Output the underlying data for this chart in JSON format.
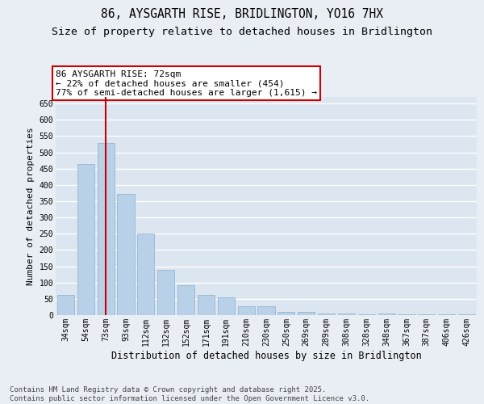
{
  "title": "86, AYSGARTH RISE, BRIDLINGTON, YO16 7HX",
  "subtitle": "Size of property relative to detached houses in Bridlington",
  "xlabel": "Distribution of detached houses by size in Bridlington",
  "ylabel": "Number of detached properties",
  "categories": [
    "34sqm",
    "54sqm",
    "73sqm",
    "93sqm",
    "112sqm",
    "132sqm",
    "152sqm",
    "171sqm",
    "191sqm",
    "210sqm",
    "230sqm",
    "250sqm",
    "269sqm",
    "289sqm",
    "308sqm",
    "328sqm",
    "348sqm",
    "367sqm",
    "387sqm",
    "406sqm",
    "426sqm"
  ],
  "values": [
    62,
    463,
    528,
    373,
    251,
    140,
    93,
    63,
    54,
    27,
    27,
    9,
    11,
    6,
    6,
    3,
    5,
    2,
    2,
    3,
    3
  ],
  "bar_color": "#b8d0e8",
  "bar_edge_color": "#8ab0cc",
  "vline_x_index": 2,
  "vline_color": "#cc0000",
  "annotation_text": "86 AYSGARTH RISE: 72sqm\n← 22% of detached houses are smaller (454)\n77% of semi-detached houses are larger (1,615) →",
  "annotation_box_facecolor": "#ffffff",
  "annotation_box_edgecolor": "#cc0000",
  "ylim": [
    0,
    670
  ],
  "yticks": [
    0,
    50,
    100,
    150,
    200,
    250,
    300,
    350,
    400,
    450,
    500,
    550,
    600,
    650
  ],
  "plot_bg_color": "#dce6f0",
  "fig_bg_color": "#e8eef4",
  "grid_color": "#ffffff",
  "footer_line1": "Contains HM Land Registry data © Crown copyright and database right 2025.",
  "footer_line2": "Contains public sector information licensed under the Open Government Licence v3.0.",
  "title_fontsize": 10.5,
  "subtitle_fontsize": 9.5,
  "xlabel_fontsize": 8.5,
  "ylabel_fontsize": 8,
  "tick_fontsize": 7,
  "annotation_fontsize": 8,
  "footer_fontsize": 6.5
}
